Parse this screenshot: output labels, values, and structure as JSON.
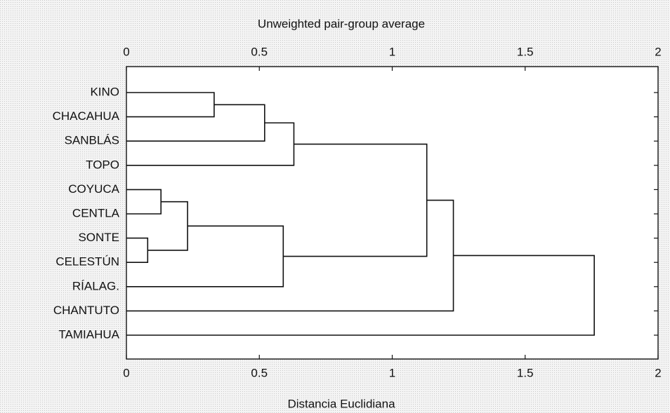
{
  "chart_data": {
    "type": "dendrogram",
    "title": "Unweighted pair-group average",
    "xlabel": "Distancia Euclidiana",
    "xlim": [
      0,
      2
    ],
    "xticks": [
      0,
      0.5,
      1,
      1.5,
      2
    ],
    "leaves": [
      "KINO",
      "CHACAHUA",
      "SANBLÁS",
      "TOPO",
      "COYUCA",
      "CENTLA",
      "SONTE",
      "CELESTÚN",
      "RÍALAG.",
      "CHANTUTO",
      "TAMIAHUA"
    ],
    "merges": [
      {
        "children": [
          0,
          1
        ],
        "height": 0.33
      },
      {
        "children": [
          11,
          2
        ],
        "height": 0.52
      },
      {
        "children": [
          12,
          3
        ],
        "height": 0.63
      },
      {
        "children": [
          4,
          5
        ],
        "height": 0.13
      },
      {
        "children": [
          6,
          7
        ],
        "height": 0.08
      },
      {
        "children": [
          14,
          15
        ],
        "height": 0.23
      },
      {
        "children": [
          16,
          8
        ],
        "height": 0.59
      },
      {
        "children": [
          13,
          17
        ],
        "height": 1.13
      },
      {
        "children": [
          18,
          9
        ],
        "height": 1.23
      },
      {
        "children": [
          19,
          10
        ],
        "height": 1.76
      }
    ]
  }
}
